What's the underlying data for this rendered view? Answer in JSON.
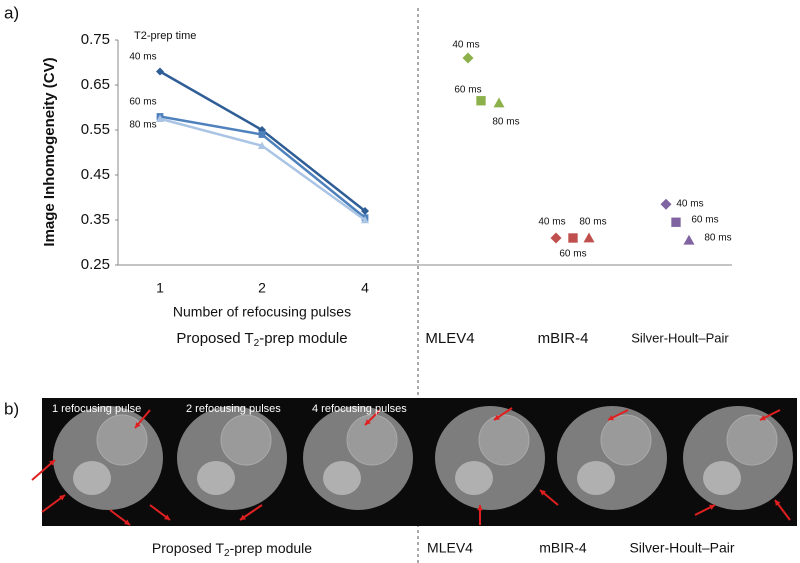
{
  "chart_data": [
    {
      "type": "line",
      "panel_label": "a)",
      "y_label": "Image Inhomogeneity (CV)",
      "legend_title": "T2-prep time",
      "ylim": [
        0.25,
        0.75
      ],
      "yticks": [
        0.25,
        0.35,
        0.45,
        0.55,
        0.65,
        0.75
      ],
      "categories": [
        "1",
        "2",
        "4"
      ],
      "x_label": "Number of refocusing pulses",
      "group_label": {
        "prefix": "Proposed T",
        "sub": "2",
        "suffix": "-prep module"
      },
      "series": [
        {
          "name": "40 ms",
          "marker": "diamond",
          "color": "#2f5d96",
          "values": [
            0.68,
            0.55,
            0.37
          ]
        },
        {
          "name": "60 ms",
          "marker": "square",
          "color": "#4f81bd",
          "values": [
            0.58,
            0.54,
            0.355
          ]
        },
        {
          "name": "80 ms",
          "marker": "triangle",
          "color": "#a9c4e4",
          "values": [
            0.575,
            0.515,
            0.35
          ]
        }
      ]
    },
    {
      "type": "scatter",
      "ylim": [
        0.25,
        0.75
      ],
      "categories": [
        "MLEV4",
        "mBIR-4",
        "Silver-Hoult–Pair"
      ],
      "category_colors": [
        "#8db14a",
        "#c0504d",
        "#8064a2"
      ],
      "series": [
        {
          "name": "40 ms",
          "marker": "diamond",
          "values": [
            0.71,
            0.31,
            0.385
          ]
        },
        {
          "name": "60 ms",
          "marker": "square",
          "values": [
            0.615,
            0.31,
            0.345
          ]
        },
        {
          "name": "80 ms",
          "marker": "triangle",
          "values": [
            0.61,
            0.31,
            0.305
          ]
        }
      ]
    }
  ],
  "panel_b": {
    "panel_label": "b)",
    "image_labels": [
      "1 refocusing pulse",
      "2 refocusing pulses",
      "4 refocusing pulses"
    ]
  }
}
